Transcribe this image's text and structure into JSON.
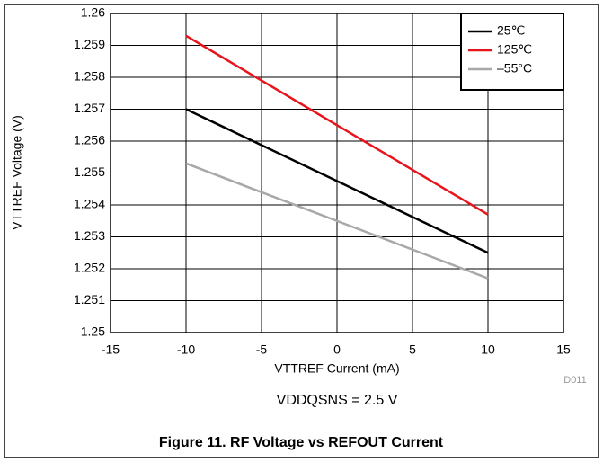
{
  "chart_data": {
    "type": "line",
    "x_label": "VTTREF Current (mA)",
    "y_label": "VTTREF Voltage (V)",
    "x": [
      -10,
      10
    ],
    "series": [
      {
        "name": "25℃",
        "color": "#000000",
        "values": [
          1.257,
          1.2525
        ]
      },
      {
        "name": "125℃",
        "color": "#e8141c",
        "values": [
          1.2593,
          1.2537
        ]
      },
      {
        "name": "–55°C",
        "color": "#a8a8a8",
        "values": [
          1.2553,
          1.2517
        ]
      }
    ],
    "xlim": [
      -15,
      15
    ],
    "xticks": [
      -15,
      -10,
      -5,
      0,
      5,
      10,
      15
    ],
    "ylim": [
      1.25,
      1.26
    ],
    "yticks": [
      1.25,
      1.251,
      1.252,
      1.253,
      1.254,
      1.255,
      1.256,
      1.257,
      1.258,
      1.259,
      1.26
    ],
    "grid": true,
    "legend": "upper right",
    "annotations": [
      "D011",
      "VDDQSNS = 2.5 V"
    ],
    "caption": "Figure 11. RF Voltage vs REFOUT Current"
  }
}
